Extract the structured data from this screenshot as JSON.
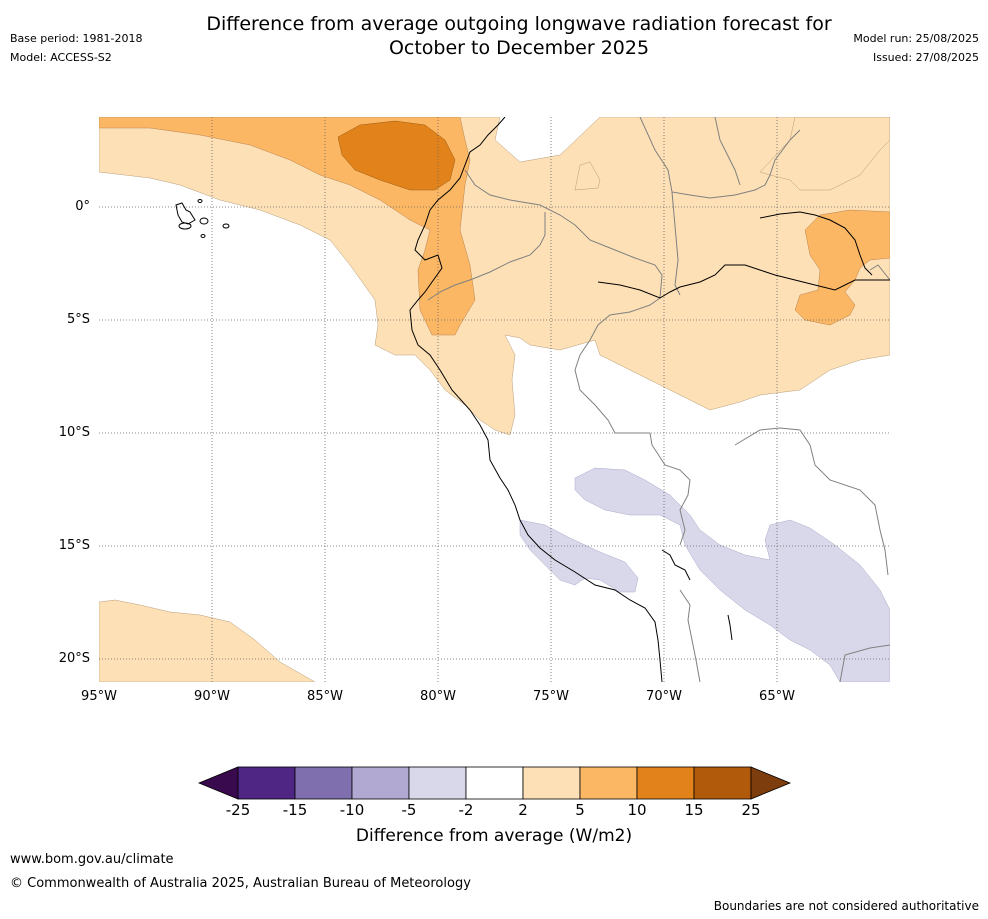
{
  "title_line1": "Difference from average outgoing longwave radiation forecast for",
  "title_line2": "October to December 2025",
  "base_period": "Base period: 1981-2018",
  "model": "Model: ACCESS-S2",
  "model_run": "Model run: 25/08/2025",
  "issued": "Issued: 27/08/2025",
  "map": {
    "lon_range": [
      -95,
      -60
    ],
    "lat_range": [
      -21,
      4
    ],
    "lat_ticks": [
      {
        "value": 0,
        "label": "0°"
      },
      {
        "value": -5,
        "label": "5°S"
      },
      {
        "value": -10,
        "label": "10°S"
      },
      {
        "value": -15,
        "label": "15°S"
      },
      {
        "value": -20,
        "label": "20°S"
      }
    ],
    "lon_ticks": [
      {
        "value": -95,
        "label": "95°W"
      },
      {
        "value": -90,
        "label": "90°W"
      },
      {
        "value": -85,
        "label": "85°W"
      },
      {
        "value": -80,
        "label": "80°W"
      },
      {
        "value": -75,
        "label": "75°W"
      },
      {
        "value": -70,
        "label": "70°W"
      },
      {
        "value": -65,
        "label": "65°W"
      }
    ]
  },
  "colorbar": {
    "ticks": [
      "-25",
      "-15",
      "-10",
      "-5",
      "-2",
      "2",
      "5",
      "10",
      "15",
      "25"
    ],
    "colors": [
      "#4f2683",
      "#7f6fae",
      "#b1a9d2",
      "#d8d8ea",
      "#ffffff",
      "#fde0b5",
      "#fbb764",
      "#e1831a",
      "#b25a0c"
    ],
    "under_color": "#3a0a4e",
    "over_color": "#7d3d0c",
    "label": "Difference from average (W/m2)"
  },
  "footer": {
    "website": "www.bom.gov.au/climate",
    "copyright": "© Commonwealth of Australia 2025, Australian Bureau of Meteorology",
    "disclaimer": "Boundaries are not considered authoritative"
  }
}
